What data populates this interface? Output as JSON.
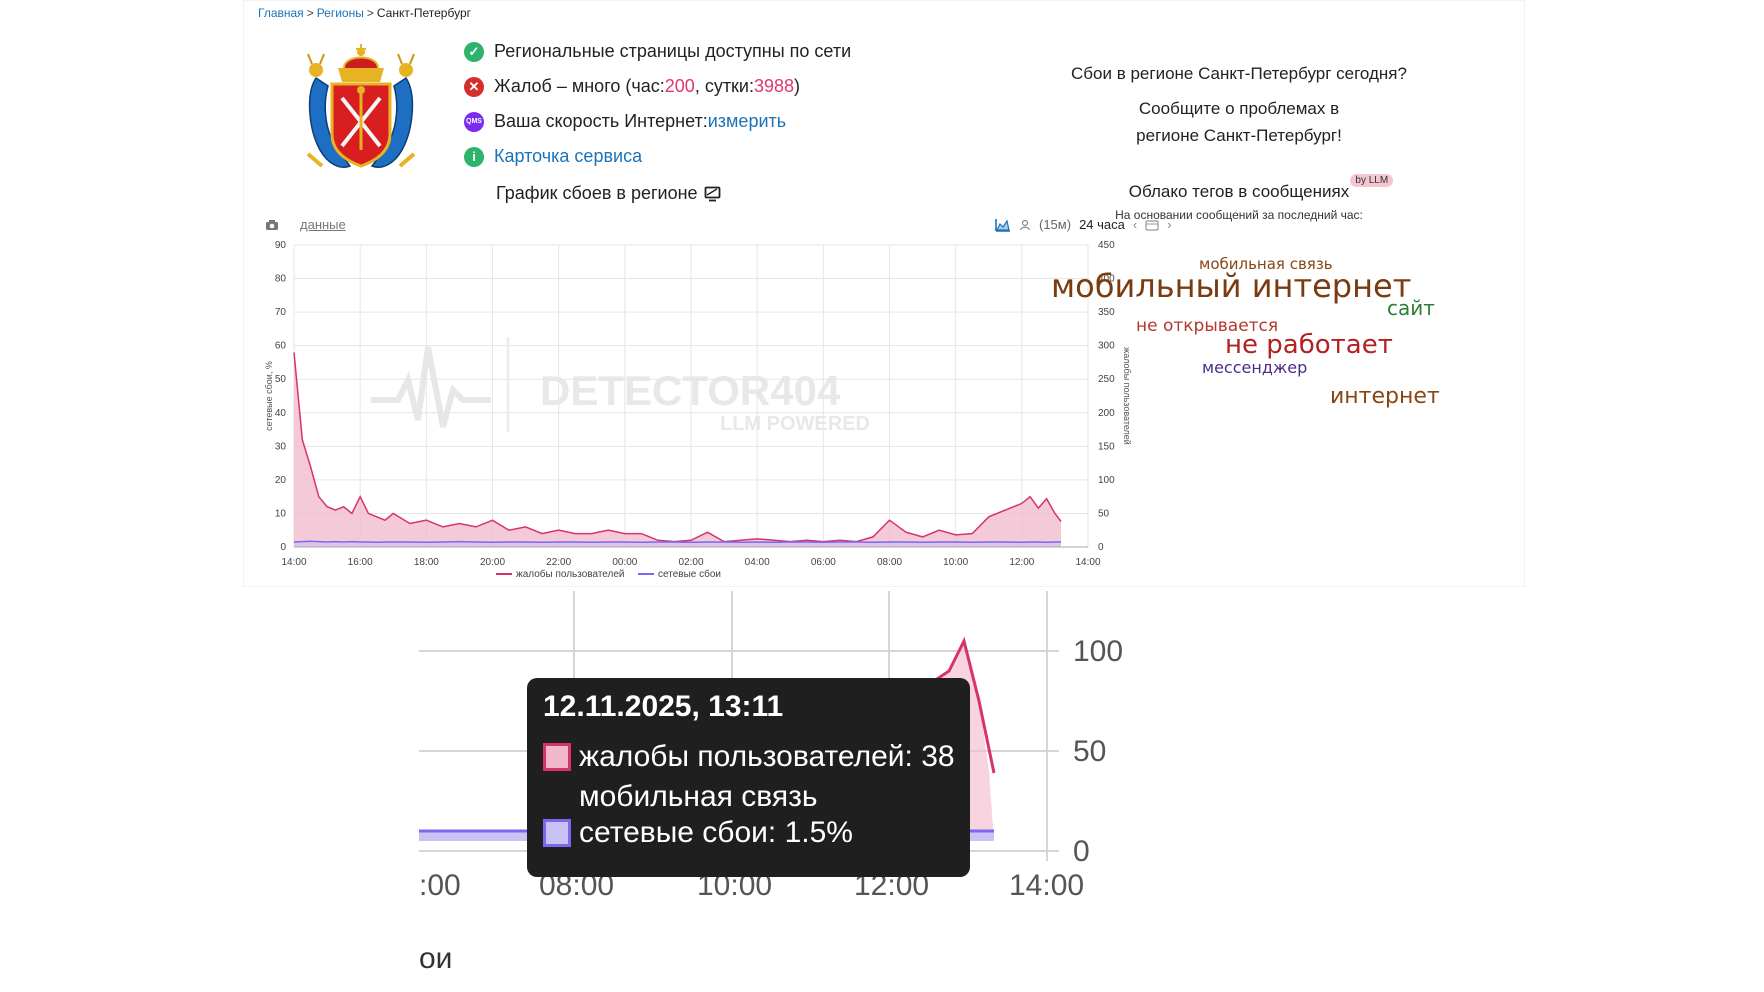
{
  "breadcrumb": {
    "home": "Главная",
    "regions": "Регионы",
    "current": "Санкт-Петербург",
    "sep": ">"
  },
  "status": {
    "available": "Региональные страницы доступны по сети",
    "complaints_prefix": "Жалоб – много (час: ",
    "complaints_hour": "200",
    "complaints_mid": ", сутки: ",
    "complaints_day": "3988",
    "complaints_suffix": ")",
    "speed_prefix": "Ваша скорость Интернет: ",
    "speed_link": "измерить",
    "service_card": "Карточка сервиса",
    "speed_badge": "QMS"
  },
  "chart_title": "График сбоев в регионе",
  "toolbar": {
    "data_link": "данные",
    "interval": "(15м)",
    "period": "24 часа"
  },
  "right": {
    "question": "Сбои в регионе Санкт-Петербург сегодня?",
    "report_line1": "Сообщите о проблемах в",
    "report_line2": "регионе Санкт-Петербург!",
    "tagcloud_title": "Облако тегов в сообщениях",
    "llm_badge": "by LLM",
    "tagcloud_note": "На основании сообщений за последний час:"
  },
  "tags": [
    {
      "text": "мобильная связь",
      "color": "#8b4513"
    },
    {
      "text": "мобильный интернет",
      "color": "#7a3b10"
    },
    {
      "text": "сайт",
      "color": "#2e7d32"
    },
    {
      "text": "не открывается",
      "color": "#b23a2a"
    },
    {
      "text": "не работает",
      "color": "#b22222"
    },
    {
      "text": "мессенджер",
      "color": "#4b2c8a"
    },
    {
      "text": "интернет",
      "color": "#8b4513"
    }
  ],
  "watermark": {
    "brand": "DETECTOR404",
    "sub": "LLM POWERED"
  },
  "colors": {
    "complaints": "#d6336c",
    "complaints_fill": "#f2b8cb",
    "network": "#7b68ee",
    "network_fill": "#c9c2f5",
    "ok": "#2fb36b",
    "error": "#d32f2f",
    "speed": "#7b2cf0",
    "info": "#2fb36b"
  },
  "chart_data": {
    "type": "area",
    "x": [
      "14:00",
      "14:15",
      "14:30",
      "14:45",
      "15:00",
      "15:15",
      "15:30",
      "15:45",
      "16:00",
      "16:15",
      "16:30",
      "16:45",
      "17:00",
      "17:30",
      "18:00",
      "18:30",
      "19:00",
      "19:30",
      "20:00",
      "20:30",
      "21:00",
      "21:30",
      "22:00",
      "22:30",
      "23:00",
      "23:30",
      "00:00",
      "00:30",
      "01:00",
      "01:30",
      "02:00",
      "02:30",
      "03:00",
      "03:30",
      "04:00",
      "04:30",
      "05:00",
      "05:30",
      "06:00",
      "06:30",
      "07:00",
      "07:30",
      "08:00",
      "08:30",
      "09:00",
      "09:30",
      "10:00",
      "10:30",
      "11:00",
      "11:30",
      "12:00",
      "12:15",
      "12:30",
      "12:45",
      "13:00",
      "13:11"
    ],
    "x_ticks": [
      "14:00",
      "16:00",
      "18:00",
      "20:00",
      "22:00",
      "00:00",
      "02:00",
      "04:00",
      "06:00",
      "08:00",
      "10:00",
      "12:00",
      "14:00"
    ],
    "series": [
      {
        "name": "жалобы пользователей",
        "axis": "right",
        "values": [
          290,
          160,
          120,
          75,
          60,
          55,
          60,
          50,
          75,
          50,
          45,
          40,
          50,
          35,
          40,
          30,
          35,
          30,
          40,
          25,
          30,
          20,
          25,
          20,
          20,
          25,
          20,
          20,
          10,
          8,
          10,
          22,
          8,
          10,
          12,
          10,
          8,
          10,
          8,
          10,
          8,
          15,
          40,
          22,
          15,
          25,
          18,
          20,
          45,
          55,
          65,
          75,
          58,
          72,
          50,
          38
        ]
      },
      {
        "name": "сетевые сбои",
        "axis": "left",
        "values": [
          1.5,
          1.6,
          1.7,
          1.6,
          1.5,
          1.6,
          1.5,
          1.6,
          1.5,
          1.5,
          1.4,
          1.5,
          1.5,
          1.5,
          1.4,
          1.5,
          1.6,
          1.5,
          1.4,
          1.5,
          1.5,
          1.4,
          1.5,
          1.5,
          1.4,
          1.5,
          1.5,
          1.4,
          1.5,
          1.5,
          1.4,
          1.5,
          1.5,
          1.4,
          1.5,
          1.4,
          1.5,
          1.5,
          1.4,
          1.5,
          1.5,
          1.4,
          1.5,
          1.5,
          1.4,
          1.5,
          1.5,
          1.4,
          1.5,
          1.5,
          1.4,
          1.5,
          1.5,
          1.4,
          1.5,
          1.5
        ]
      }
    ],
    "ylabel_left": "сетевые сбои, %",
    "ylabel_right": "жалобы пользователей",
    "ylim_left": [
      0,
      90
    ],
    "ylim_right": [
      0,
      450
    ],
    "y_ticks_left": [
      0,
      10,
      20,
      30,
      40,
      50,
      60,
      70,
      80,
      90
    ],
    "y_ticks_right": [
      0,
      50,
      100,
      150,
      200,
      250,
      300,
      350,
      400,
      450
    ],
    "legend": [
      "жалобы пользователей",
      "сетевые сбои"
    ],
    "legend_position": "bottom",
    "grid": true
  },
  "zoom": {
    "y_ticks": [
      "100",
      "50",
      "0"
    ],
    "x_ticks": [
      ":00",
      "08:00",
      "10:00",
      "12:00",
      "14:00"
    ],
    "bottom_fragment": "ои",
    "tooltip": {
      "title": "12.11.2025, 13:11",
      "row1": "жалобы пользователей: 38",
      "row2": "мобильная связь",
      "row3": "сетевые сбои: 1.5%"
    }
  }
}
